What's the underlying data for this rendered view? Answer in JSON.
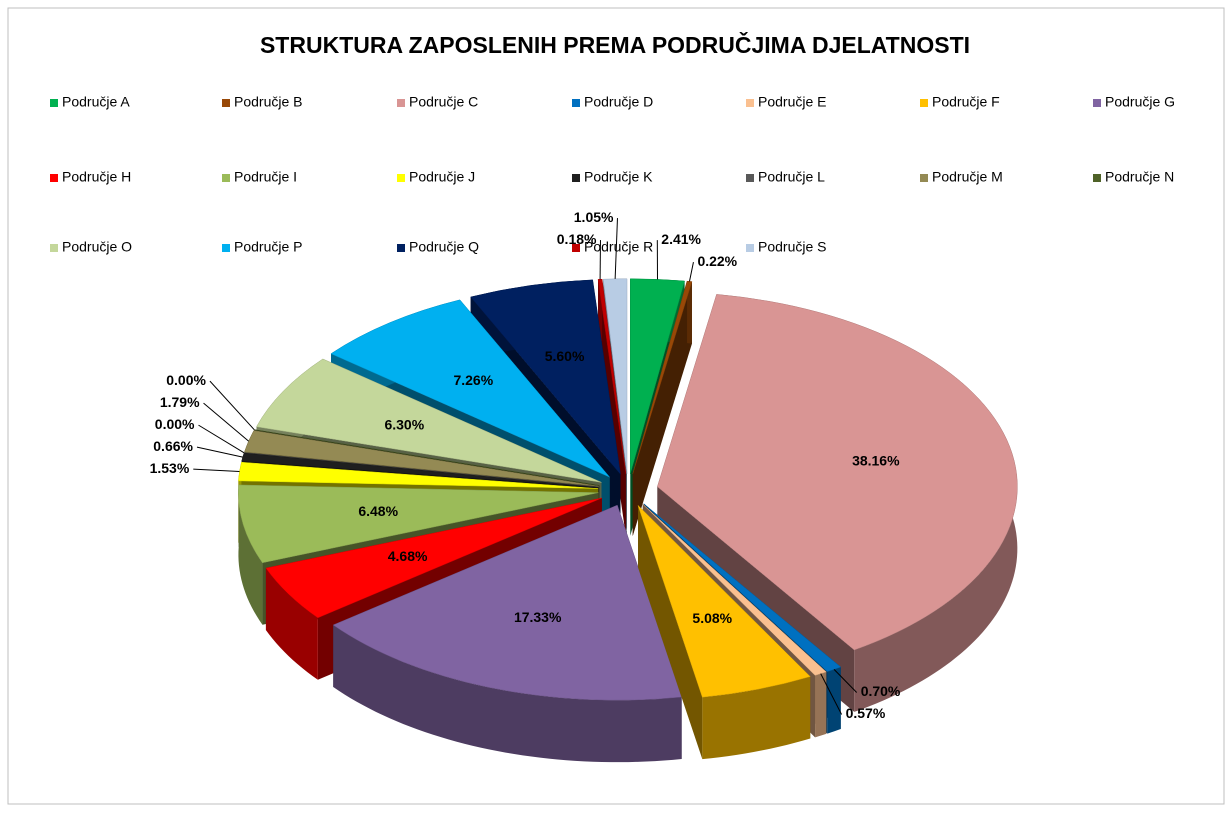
{
  "chart_data": {
    "type": "pie3d",
    "title": "STRUKTURA ZAPOSLENIH PREMA PODRUČJIMA DJELATNOSTI",
    "categories": [
      "Područje A",
      "Područje B",
      "Područje C",
      "Područje D",
      "Područje E",
      "Područje F",
      "Područje G",
      "Područje H",
      "Područje I",
      "Područje J",
      "Područje K",
      "Područje L",
      "Područje M",
      "Područje N",
      "Područje O",
      "Područje P",
      "Područje Q",
      "Područje R",
      "Područje S"
    ],
    "values": [
      2.41,
      0.22,
      38.16,
      0.7,
      0.57,
      5.08,
      17.33,
      4.68,
      6.48,
      1.53,
      0.66,
      0.0,
      1.79,
      0.0,
      6.3,
      7.26,
      5.6,
      0.18,
      1.05
    ],
    "value_labels": [
      "2.41%",
      "0.22%",
      "38.16%",
      "0.70%",
      "0.57%",
      "5.08%",
      "17.33%",
      "4.68%",
      "6.48%",
      "1.53%",
      "0.66%",
      "0.00%",
      "1.79%",
      "0.00%",
      "6.30%",
      "7.26%",
      "5.60%",
      "0.18%",
      "1.05%"
    ],
    "colors": [
      "#00b050",
      "#984807",
      "#d99594",
      "#0070c0",
      "#fac090",
      "#ffc000",
      "#8064a2",
      "#ff0000",
      "#9bbb59",
      "#ffff00",
      "#1f1f1f",
      "#595959",
      "#948a54",
      "#4f6228",
      "#c4d79b",
      "#00b0f0",
      "#002060",
      "#c00000",
      "#b8cce4"
    ],
    "legend": "top"
  }
}
